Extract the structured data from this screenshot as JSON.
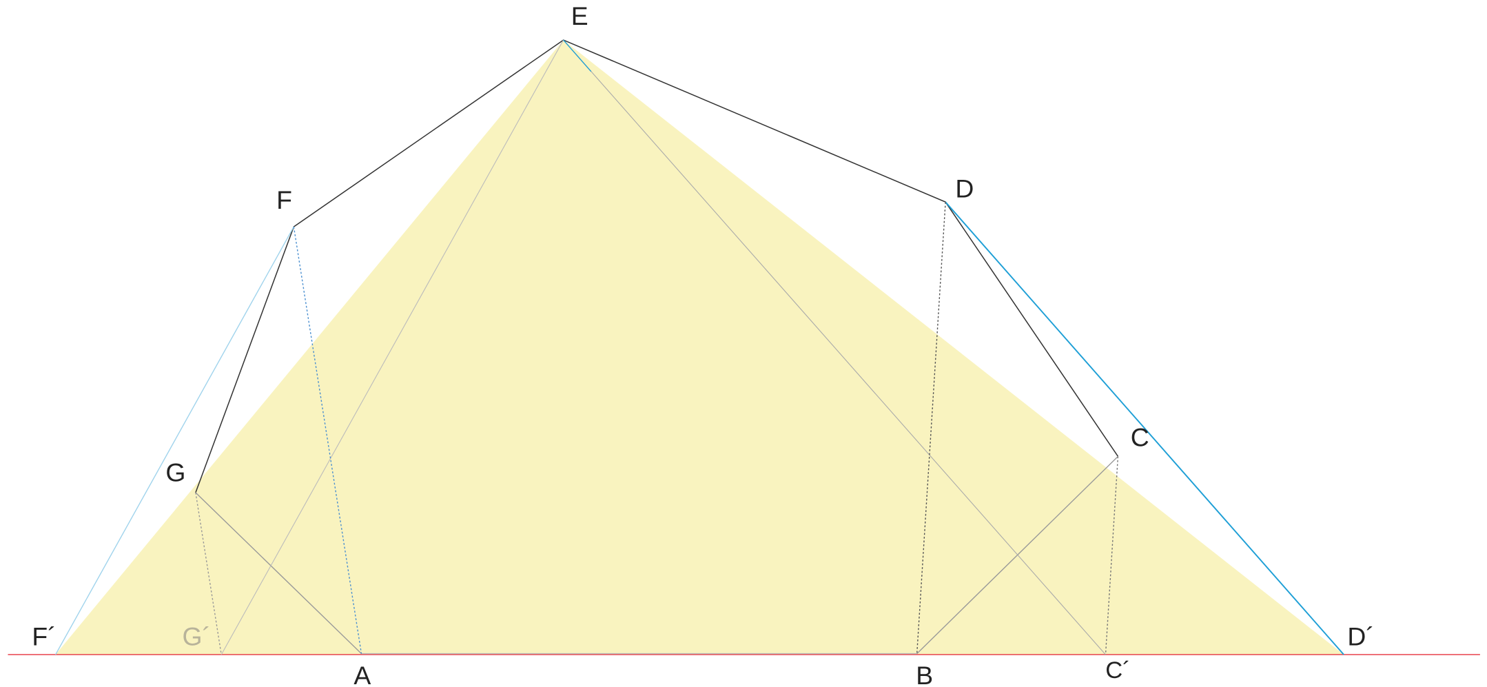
{
  "labels": {
    "E": "E",
    "F": "F",
    "G": "G",
    "A": "A",
    "B": "B",
    "C": "C",
    "D": "D",
    "F2": "F´",
    "G2": "G´",
    "C2": "C´",
    "D2": "D´"
  }
}
